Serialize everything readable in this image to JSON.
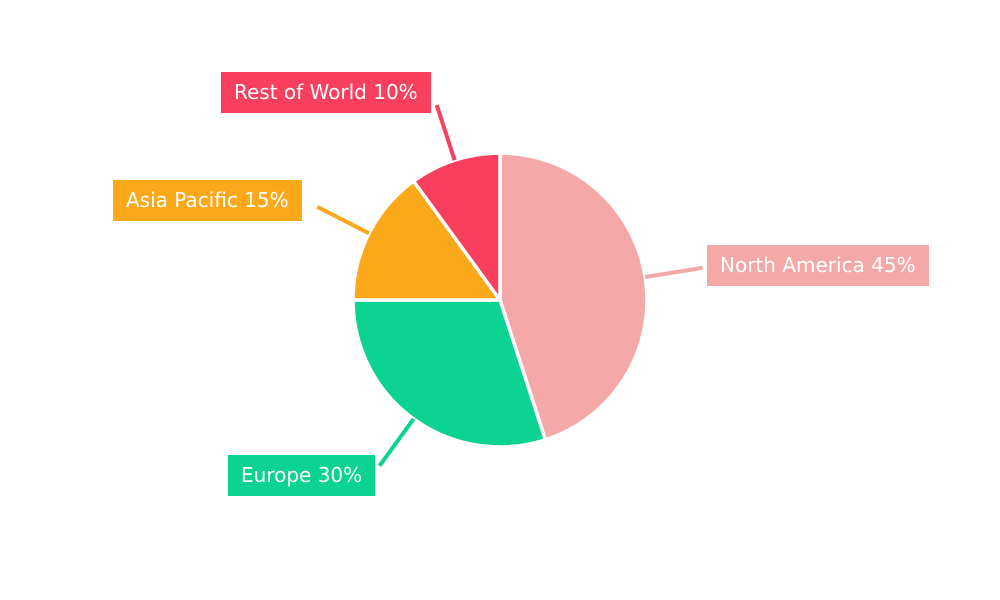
{
  "chart_data": {
    "type": "pie",
    "title": "",
    "categories": [
      "North America",
      "Europe",
      "Asia Pacific",
      "Rest of World"
    ],
    "values": [
      45,
      30,
      15,
      10
    ],
    "unit": "%",
    "colors": [
      "#F5A8A8",
      "#0DD392",
      "#FBA81A",
      "#F93F5E"
    ],
    "callouts": [
      {
        "text": "North America 45%"
      },
      {
        "text": "Europe 30%"
      },
      {
        "text": "Asia Pacific 15%"
      },
      {
        "text": "Rest of World 10%"
      }
    ],
    "start_angle_deg": 0,
    "direction": "clockwise",
    "legend_position": "callout-labels",
    "background": "#FFFFFF",
    "separator_color": "#FFFFFF",
    "label_text_color": "#FFFFFF"
  }
}
